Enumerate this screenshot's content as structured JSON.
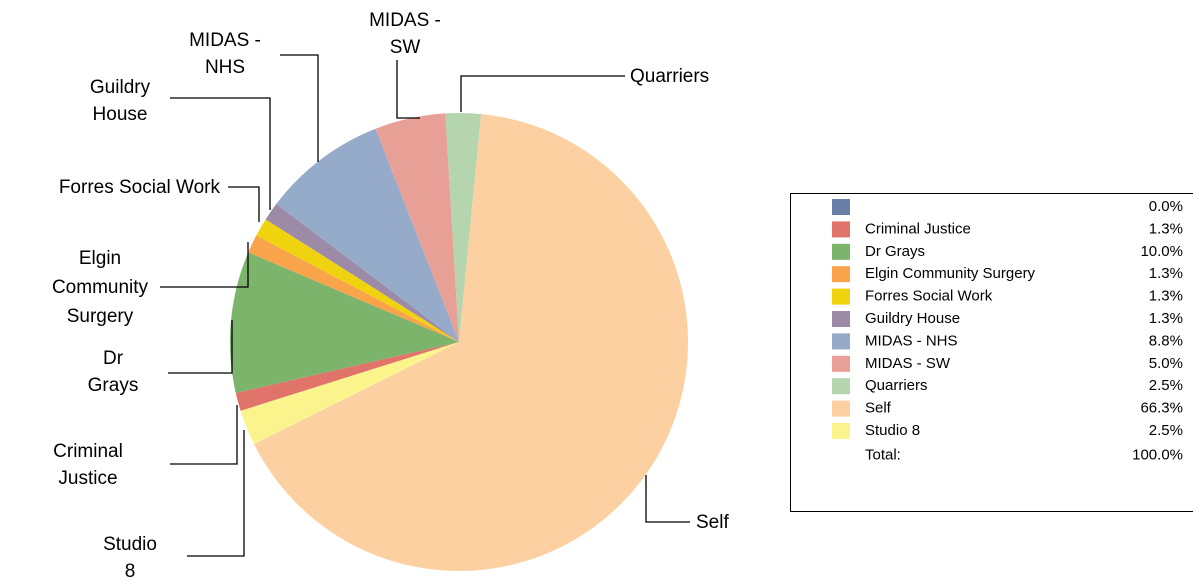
{
  "chart_data": {
    "type": "pie",
    "categories": [
      null,
      "Criminal Justice",
      "Dr Grays",
      "Elgin Community Surgery",
      "Forres Social Work",
      "Guildry House",
      "MIDAS - NHS",
      "MIDAS - SW",
      "Quarriers",
      "Self",
      "Studio 8"
    ],
    "values": [
      0,
      1.3,
      10.0,
      1.3,
      1.3,
      1.3,
      8.8,
      5.0,
      2.5,
      66.3,
      2.5
    ],
    "value_labels": [
      "0.0%",
      "1.3%",
      "10.0%",
      "1.3%",
      "1.3%",
      "1.3%",
      "8.8%",
      "5.0%",
      "2.5%",
      "66.3%",
      "2.5%"
    ],
    "colors": [
      "#6a7fa8",
      "#e0746b",
      "#7db46c",
      "#f9a44a",
      "#efd30f",
      "#9c8aa6",
      "#96abc9",
      "#e8a096",
      "#b5d5ae",
      "#fdd0a2",
      "#fbf48d"
    ],
    "total": {
      "label": "Total:",
      "value": "100.0%"
    },
    "legend": "right"
  }
}
